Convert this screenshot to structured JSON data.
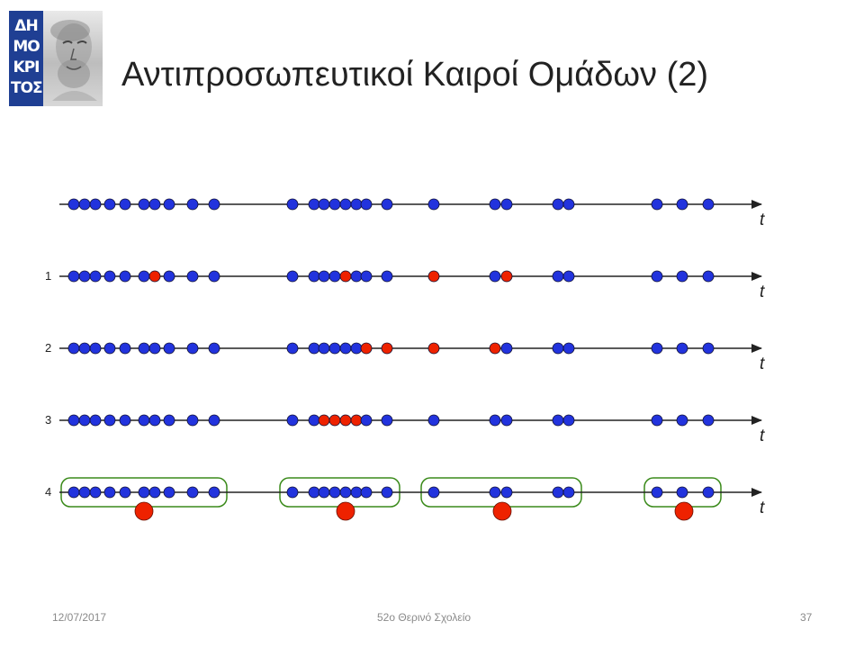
{
  "header": {
    "title": "Αντιπροσωπευτικοί Καιροί Ομάδων (2)",
    "logo_letters": [
      "ΔΗ",
      "ΜΟ",
      "ΚΡΙ",
      "ΤΟΣ"
    ]
  },
  "diagram": {
    "axis_label": "t",
    "colors": {
      "blue": "#2233dd",
      "red": "#ee2200",
      "green": "#3a8a1a",
      "axis": "#222222"
    },
    "events_t": [
      82,
      94,
      106,
      122,
      139,
      160,
      172,
      188,
      214,
      238,
      325,
      349,
      360,
      372,
      384,
      396,
      407,
      430,
      482,
      550,
      563,
      620,
      632,
      730,
      758,
      787
    ],
    "rows": [
      {
        "label": "",
        "red_t": []
      },
      {
        "label": "1",
        "red_t": [
          172,
          384,
          482,
          563
        ]
      },
      {
        "label": "2",
        "red_t": [
          407,
          430,
          482,
          550
        ]
      },
      {
        "label": "3",
        "red_t": [
          360,
          372,
          384,
          396
        ]
      },
      {
        "label": "4",
        "red_t": []
      }
    ],
    "clusters": [
      {
        "t_from": 82,
        "t_to": 238,
        "representative_t": 160
      },
      {
        "t_from": 325,
        "t_to": 430,
        "representative_t": 384
      },
      {
        "t_from": 482,
        "t_to": 632,
        "representative_t": 558
      },
      {
        "t_from": 730,
        "t_to": 787,
        "representative_t": 760
      }
    ]
  },
  "footer": {
    "date": "12/07/2017",
    "center": "52ο Θερινό Σχολείο",
    "page": "37"
  }
}
